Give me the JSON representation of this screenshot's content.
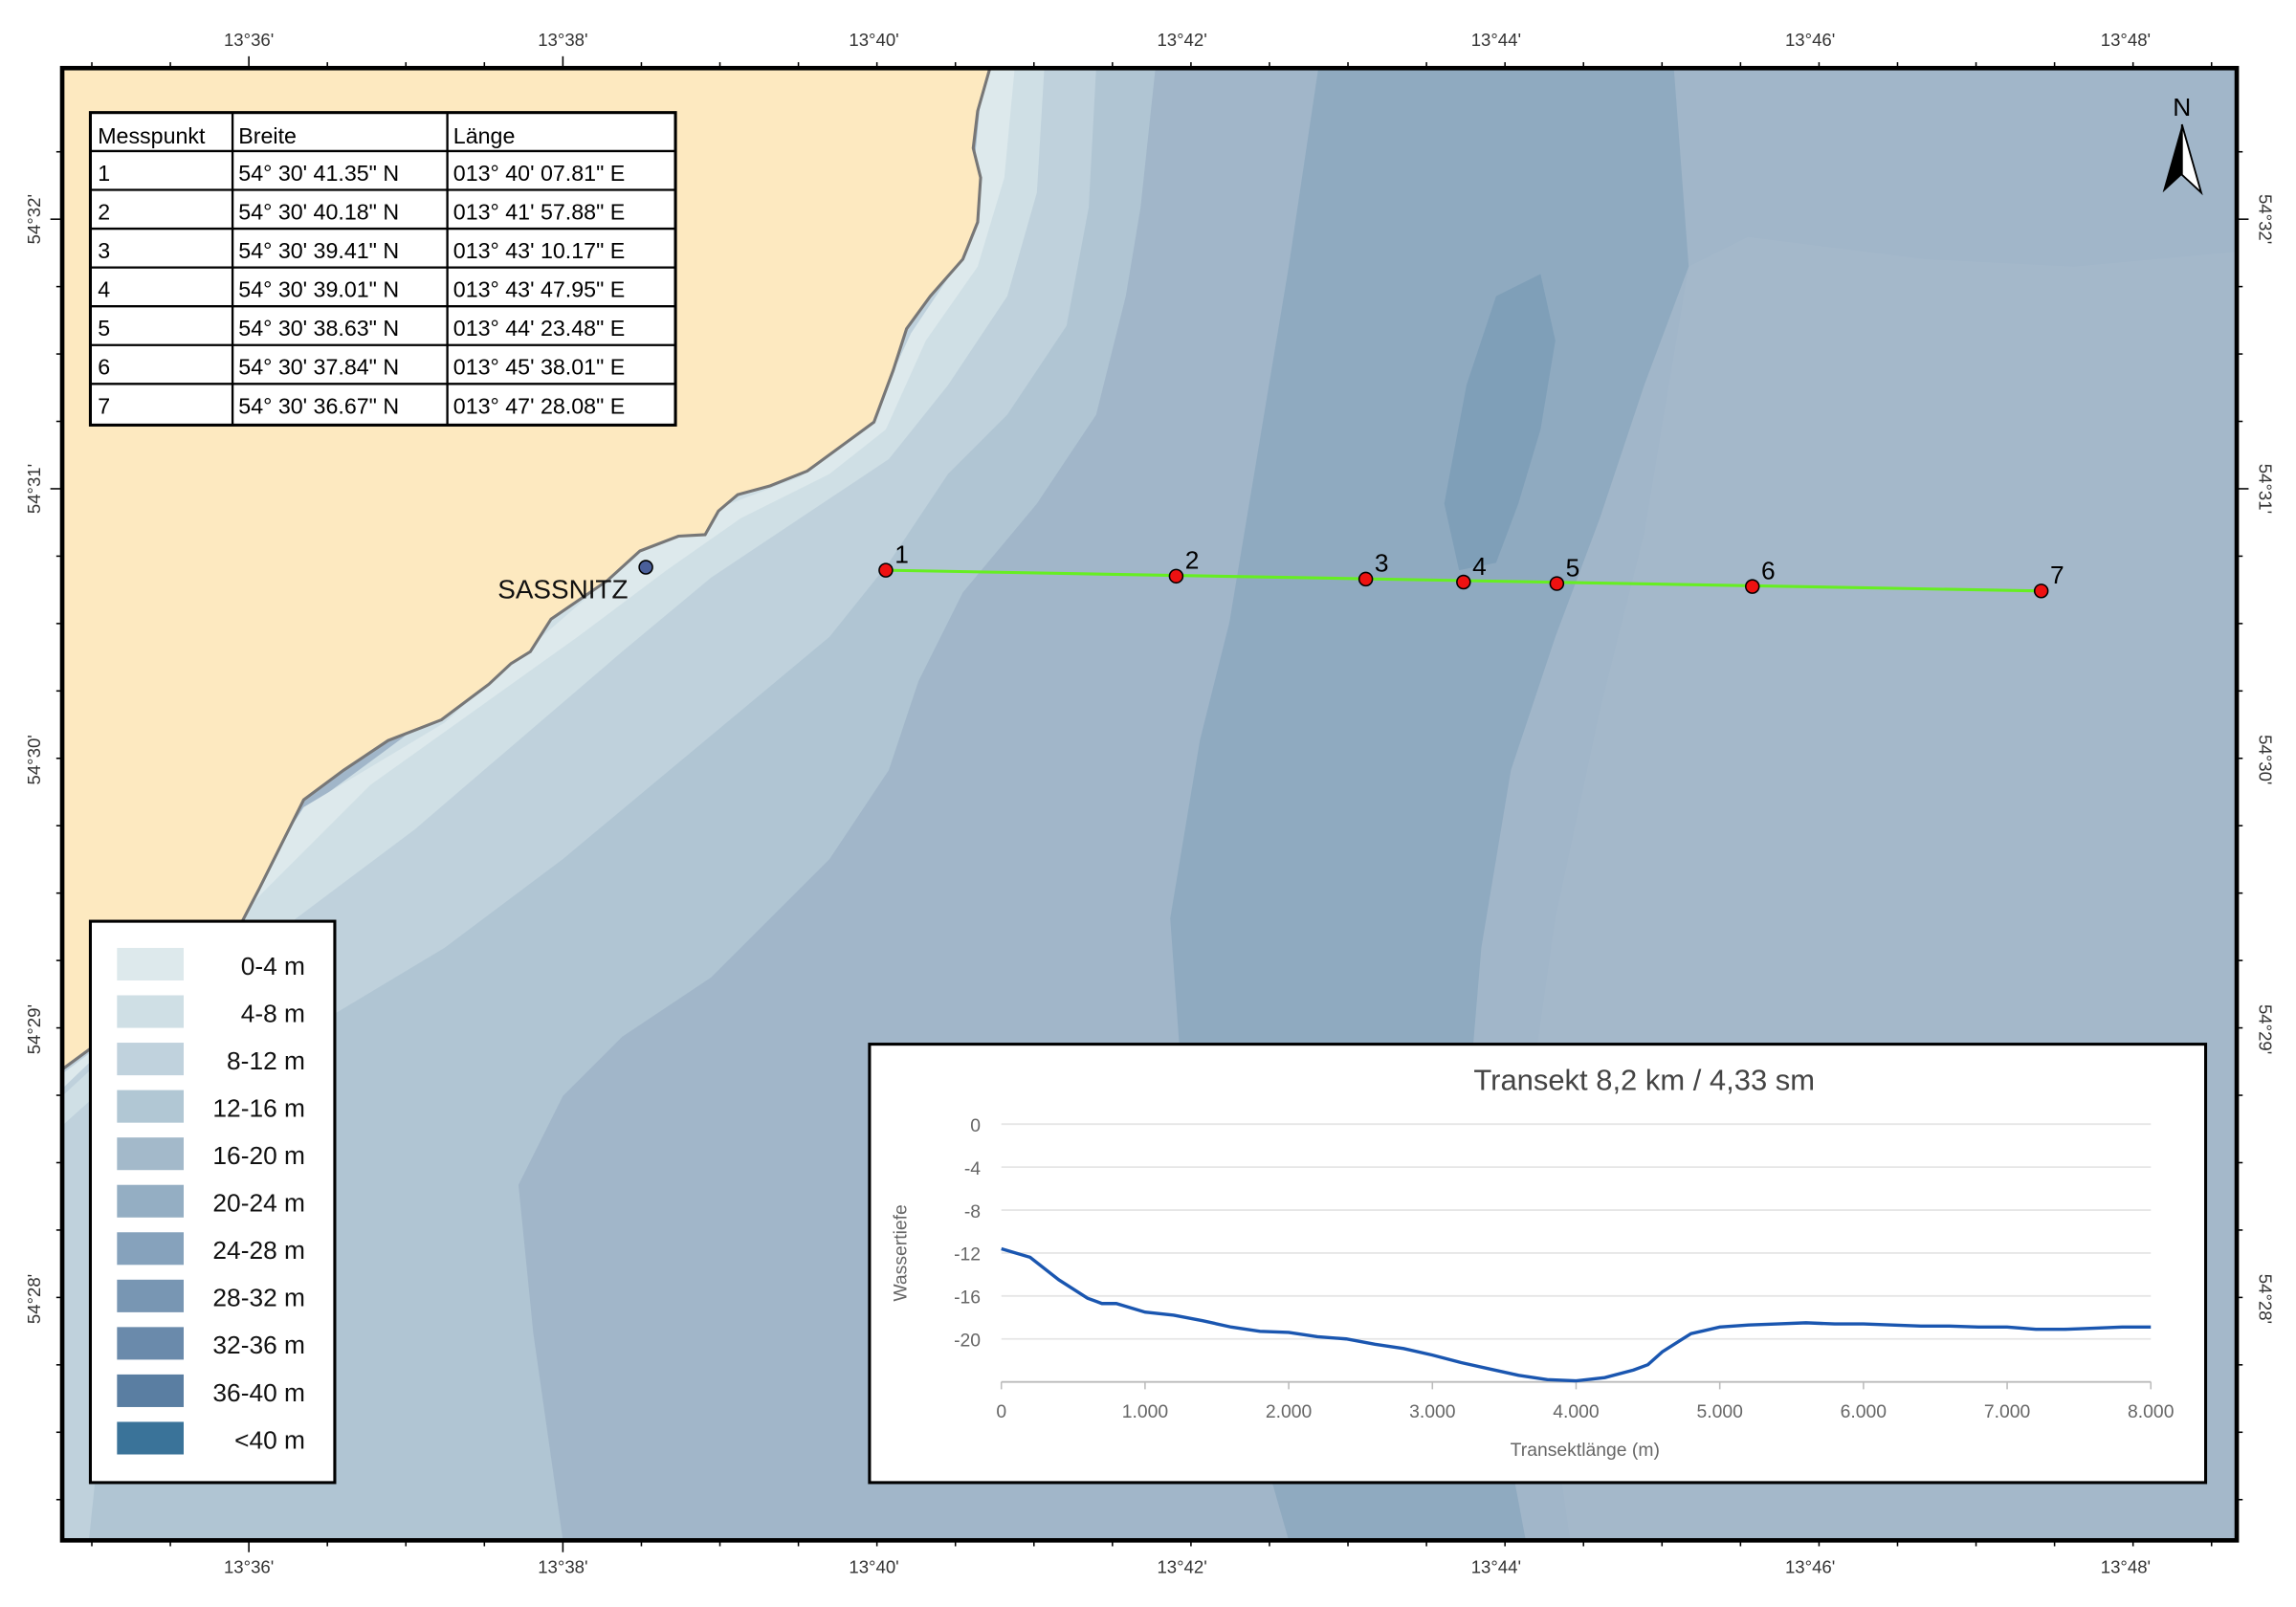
{
  "lon_labels": [
    "13°36'",
    "13°38'",
    "13°40'",
    "13°42'",
    "13°44'",
    "13°46'",
    "13°48'"
  ],
  "lat_labels": [
    "54°32'",
    "54°31'",
    "54°30'",
    "54°29'",
    "54°28'"
  ],
  "north_label": "N",
  "place_label": "SASSNITZ",
  "table": {
    "headers": [
      "Messpunkt",
      "Breite",
      "Länge"
    ],
    "rows": [
      [
        "1",
        "54° 30' 41.35\" N",
        "013° 40' 07.81\" E"
      ],
      [
        "2",
        "54° 30' 40.18\" N",
        "013° 41' 57.88\" E"
      ],
      [
        "3",
        "54° 30' 39.41\" N",
        "013° 43' 10.17\" E"
      ],
      [
        "4",
        "54° 30' 39.01\" N",
        "013° 43' 47.95\" E"
      ],
      [
        "5",
        "54° 30' 38.63\" N",
        "013° 44' 23.48\" E"
      ],
      [
        "6",
        "54° 30' 37.84\" N",
        "013° 45' 38.01\" E"
      ],
      [
        "7",
        "54° 30' 36.67\" N",
        "013° 47' 28.08\" E"
      ]
    ]
  },
  "points": [
    "1",
    "2",
    "3",
    "4",
    "5",
    "6",
    "7"
  ],
  "legend": [
    {
      "label": "0-4 m",
      "color": "#dde9ec"
    },
    {
      "label": "4-8 m",
      "color": "#cfdfe5"
    },
    {
      "label": "8-12 m",
      "color": "#c0d2dd"
    },
    {
      "label": "12-16 m",
      "color": "#b1c7d4"
    },
    {
      "label": "16-20 m",
      "color": "#a3b9ca"
    },
    {
      "label": "20-24 m",
      "color": "#94aec3"
    },
    {
      "label": "24-28 m",
      "color": "#86a2bc"
    },
    {
      "label": "28-32 m",
      "color": "#7896b3"
    },
    {
      "label": "32-36 m",
      "color": "#6a8aab"
    },
    {
      "label": "36-40 m",
      "color": "#5a7ea2"
    },
    {
      "label": "<40 m",
      "color": "#3a7399"
    }
  ],
  "colors": {
    "land": "#fde9c0",
    "transect": "#66ee22",
    "point": "#ee1111",
    "line": "#1a56b0"
  },
  "chart_data": {
    "type": "line",
    "title": "Transekt 8,2 km / 4,33 sm",
    "xlabel": "Transektlänge (m)",
    "ylabel": "Wassertiefe",
    "xlim": [
      0,
      8000
    ],
    "ylim": [
      -24,
      0
    ],
    "x_ticks": [
      "0",
      "1.000",
      "2.000",
      "3.000",
      "4.000",
      "5.000",
      "6.000",
      "7.000",
      "8.000"
    ],
    "y_ticks": [
      "0",
      "-4",
      "-8",
      "-12",
      "-16",
      "-20"
    ],
    "x": [
      0,
      200,
      400,
      600,
      700,
      800,
      1000,
      1200,
      1400,
      1600,
      1800,
      2000,
      2200,
      2400,
      2600,
      2800,
      3000,
      3200,
      3400,
      3600,
      3800,
      4000,
      4200,
      4400,
      4500,
      4600,
      4800,
      5000,
      5200,
      5400,
      5600,
      5800,
      6000,
      6200,
      6400,
      6600,
      6800,
      7000,
      7200,
      7400,
      7600,
      7800,
      8000
    ],
    "y": [
      -11.6,
      -12.4,
      -14.5,
      -16.2,
      -16.7,
      -16.7,
      -17.5,
      -17.8,
      -18.3,
      -18.9,
      -19.3,
      -19.4,
      -19.8,
      -20.0,
      -20.5,
      -20.9,
      -21.5,
      -22.2,
      -22.8,
      -23.4,
      -23.8,
      -23.9,
      -23.6,
      -22.9,
      -22.4,
      -21.2,
      -19.5,
      -18.9,
      -18.7,
      -18.6,
      -18.5,
      -18.6,
      -18.6,
      -18.7,
      -18.8,
      -18.8,
      -18.9,
      -18.9,
      -19.1,
      -19.1,
      -19.0,
      -18.9,
      -18.9
    ]
  }
}
